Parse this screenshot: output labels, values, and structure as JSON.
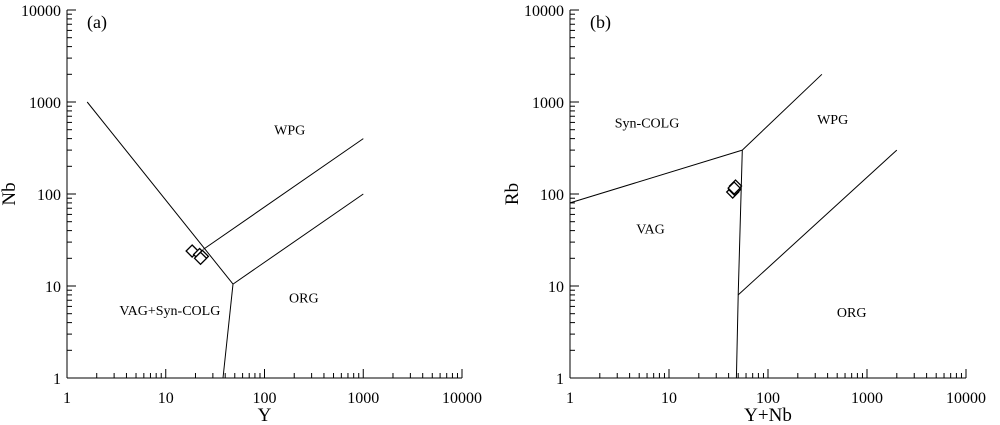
{
  "chart_data": [
    {
      "type": "scatter",
      "panel_label": "(a)",
      "xlabel": "Y",
      "ylabel": "Nb",
      "xscale": "log",
      "yscale": "log",
      "xlim": [
        1,
        10000
      ],
      "ylim": [
        1,
        10000
      ],
      "xticks": [
        "1",
        "10",
        "100",
        "1000",
        "10000"
      ],
      "yticks": [
        "1",
        "10",
        "100",
        "1000",
        "10000"
      ],
      "grid": false,
      "boundaries": [
        {
          "name": "VAG+Syn-COLG / WPG",
          "x": [
            1.6,
            48
          ],
          "y": [
            1000,
            10.5
          ]
        },
        {
          "name": "VAG+Syn-COLG / ORG",
          "x": [
            48,
            38
          ],
          "y": [
            10.5,
            1
          ]
        },
        {
          "name": "ORG / WPG",
          "x": [
            48,
            1000
          ],
          "y": [
            10.5,
            100
          ]
        },
        {
          "name": "WPG upper",
          "x": [
            24,
            1000
          ],
          "y": [
            25,
            400
          ]
        }
      ],
      "regions": [
        {
          "label": "WPG",
          "x": 180,
          "y": 500
        },
        {
          "label": "VAG+Syn-COLG",
          "x": 11,
          "y": 5.5
        },
        {
          "label": "ORG",
          "x": 250,
          "y": 7.5
        }
      ],
      "points": {
        "marker": "diamond",
        "x": [
          18.5,
          22,
          23.5,
          22.5
        ],
        "y": [
          24,
          22,
          21,
          20
        ]
      }
    },
    {
      "type": "scatter",
      "panel_label": "(b)",
      "xlabel": "Y+Nb",
      "ylabel": "Rb",
      "xscale": "log",
      "yscale": "log",
      "xlim": [
        1,
        10000
      ],
      "ylim": [
        1,
        10000
      ],
      "xticks": [
        "1",
        "10",
        "100",
        "1000",
        "10000"
      ],
      "yticks": [
        "1",
        "10",
        "100",
        "1000",
        "10000"
      ],
      "grid": false,
      "boundaries": [
        {
          "name": "Syn-COLG / VAG",
          "x": [
            1,
            55
          ],
          "y": [
            80,
            300
          ]
        },
        {
          "name": "Syn-COLG / WPG",
          "x": [
            55,
            350
          ],
          "y": [
            300,
            2000
          ]
        },
        {
          "name": "VAG / WPG-ORG",
          "x": [
            55,
            50,
            48
          ],
          "y": [
            300,
            8,
            1
          ]
        },
        {
          "name": "WPG / ORG",
          "x": [
            50,
            2000
          ],
          "y": [
            8,
            300
          ]
        }
      ],
      "regions": [
        {
          "label": "Syn-COLG",
          "x": 6,
          "y": 600
        },
        {
          "label": "WPG",
          "x": 450,
          "y": 650
        },
        {
          "label": "VAG",
          "x": 6.5,
          "y": 42
        },
        {
          "label": "ORG",
          "x": 700,
          "y": 5.2
        }
      ],
      "points": {
        "marker": "diamond",
        "x": [
          44,
          46,
          47,
          45.5
        ],
        "y": [
          105,
          112,
          122,
          116
        ]
      }
    }
  ]
}
